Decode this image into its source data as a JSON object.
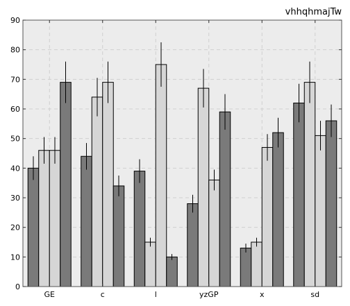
{
  "chart_data": {
    "type": "bar",
    "title": "vhhqhmajTw",
    "xlabel": "",
    "ylabel": "",
    "categories": [
      "GE",
      "c",
      "l",
      "yzGP",
      "x",
      "sd"
    ],
    "ylim": [
      0,
      90
    ],
    "yticks": [
      0,
      10,
      20,
      30,
      40,
      50,
      60,
      70,
      80,
      90
    ],
    "grid": true,
    "series": [
      {
        "color": "#7a7a7a",
        "values": [
          40,
          44,
          39,
          28,
          13,
          62
        ],
        "errors": [
          4,
          4.5,
          4,
          3,
          1.5,
          6.5
        ]
      },
      {
        "color": "#d6d6d6",
        "values": [
          46,
          64,
          15,
          67,
          15,
          69
        ],
        "errors": [
          4.5,
          6.5,
          1.5,
          6.5,
          1.5,
          7
        ]
      },
      {
        "color": "#d6d6d6",
        "values": [
          46,
          69,
          75,
          36,
          47,
          51
        ],
        "errors": [
          4.5,
          7,
          7.5,
          3.5,
          4.5,
          5
        ]
      },
      {
        "color": "#7a7a7a",
        "values": [
          69,
          34,
          10,
          59,
          52,
          56
        ],
        "errors": [
          7,
          3.5,
          1,
          6,
          5,
          5.5
        ]
      }
    ],
    "background": "#ececec",
    "grid_color": "#cfcfcf"
  }
}
